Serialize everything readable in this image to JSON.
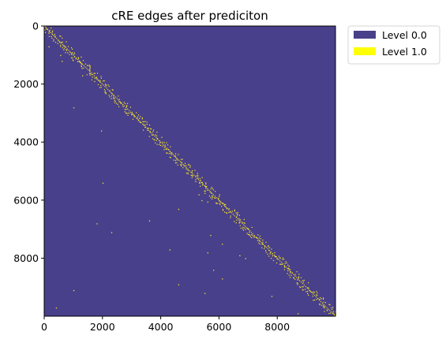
{
  "chart_data": {
    "type": "heatmap",
    "title": "cRE edges after prediciton",
    "xlabel": "",
    "ylabel": "",
    "n": 10000,
    "xlim": [
      0,
      9999
    ],
    "ylim": [
      9999,
      0
    ],
    "x_ticks": [
      0,
      2000,
      4000,
      6000,
      8000
    ],
    "x_tick_labels": [
      "0",
      "2000",
      "4000",
      "6000",
      "8000"
    ],
    "y_ticks": [
      0,
      2000,
      4000,
      6000,
      8000
    ],
    "y_tick_labels": [
      "0",
      "2000",
      "4000",
      "6000",
      "8000"
    ],
    "grid": false,
    "legend_position": "outside-top-right",
    "colors": {
      "background": "#48408a",
      "edge": "#fde725"
    },
    "levels": [
      {
        "label": "Level 0.0",
        "value": 0.0,
        "color": "#48408a"
      },
      {
        "label": "Level 1.0",
        "value": 1.0,
        "color": "#ffff00"
      }
    ],
    "diagonal_band": {
      "start": [
        0,
        0
      ],
      "end": [
        9999,
        9999
      ],
      "note": "dense near-diagonal edges, value 1.0"
    },
    "off_diagonal_points": [
      [
        150,
        700
      ],
      [
        550,
        1000
      ],
      [
        600,
        1200
      ],
      [
        1300,
        1700
      ],
      [
        1000,
        2800
      ],
      [
        1950,
        3600
      ],
      [
        2000,
        5400
      ],
      [
        5300,
        5800
      ],
      [
        5500,
        5750
      ],
      [
        5700,
        5900
      ],
      [
        5400,
        6000
      ],
      [
        5600,
        6050
      ],
      [
        5900,
        6100
      ],
      [
        4600,
        6300
      ],
      [
        3600,
        6700
      ],
      [
        1800,
        6800
      ],
      [
        2300,
        7100
      ],
      [
        5700,
        7200
      ],
      [
        6100,
        7500
      ],
      [
        4300,
        7700
      ],
      [
        5600,
        7800
      ],
      [
        6700,
        7900
      ],
      [
        6900,
        8000
      ],
      [
        5800,
        8400
      ],
      [
        6100,
        8700
      ],
      [
        4600,
        8900
      ],
      [
        1000,
        9100
      ],
      [
        5500,
        9200
      ],
      [
        7800,
        9300
      ],
      [
        400,
        9700
      ],
      [
        8700,
        9900
      ]
    ]
  }
}
